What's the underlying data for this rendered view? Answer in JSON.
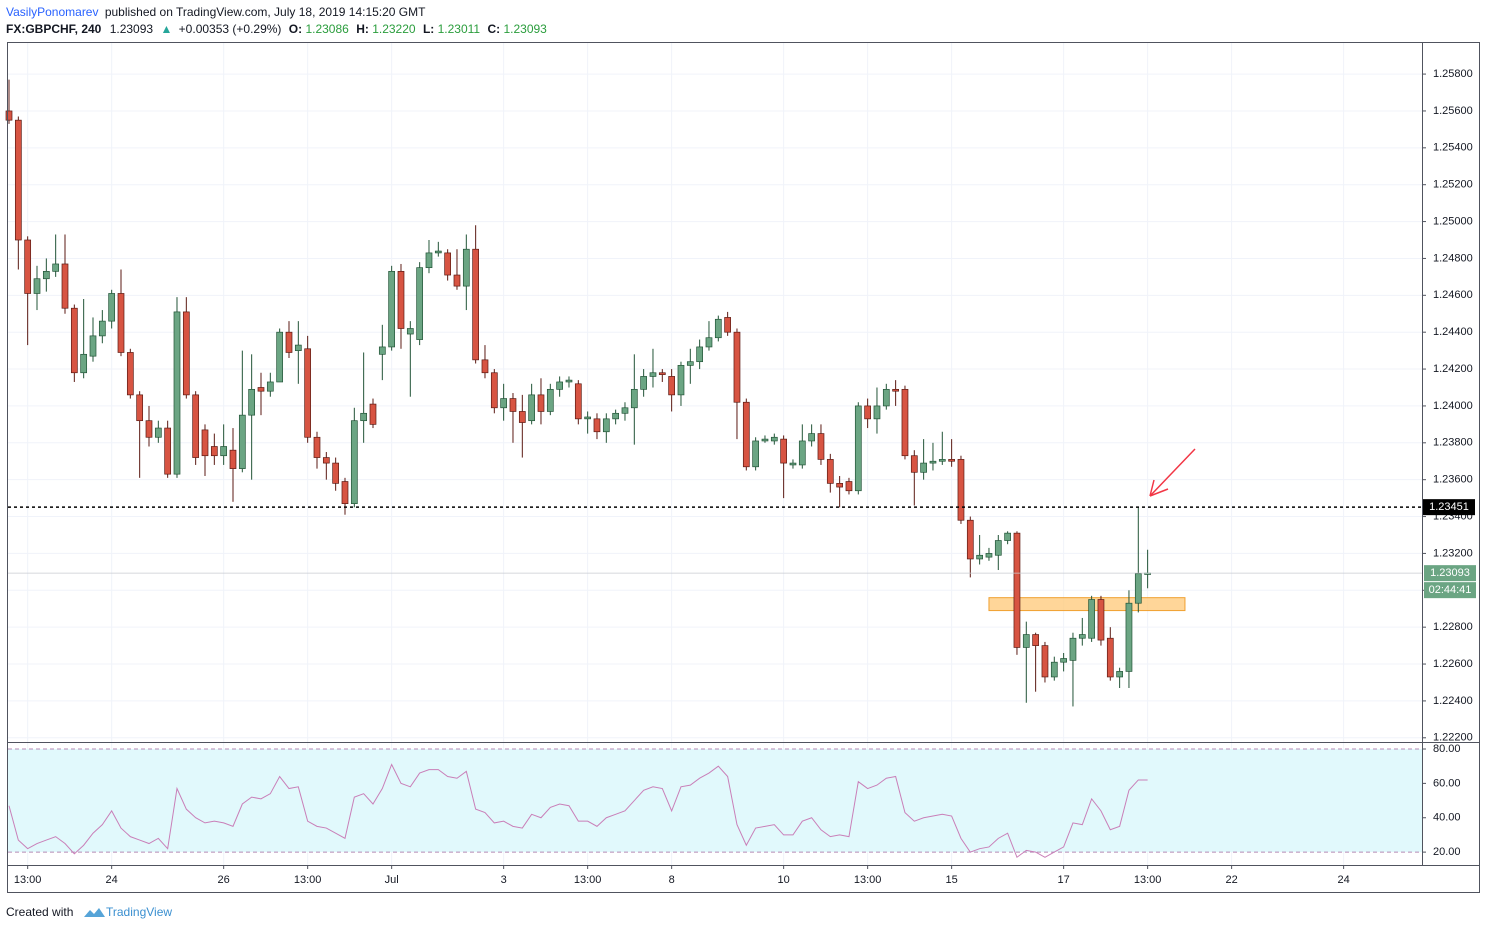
{
  "header": {
    "author": "VasilyPonomarev",
    "published": "published on TradingView.com, July 18, 2019 14:15:20 GMT",
    "symbol": "FX:GBPCHF, 240",
    "last": "1.23093",
    "change": "+0.00353 (+0.29%)",
    "ohlc": [
      {
        "label": "O:",
        "value": "1.23086"
      },
      {
        "label": "H:",
        "value": "1.23220"
      },
      {
        "label": "L:",
        "value": "1.23011"
      },
      {
        "label": "C:",
        "value": "1.23093"
      }
    ]
  },
  "footer": {
    "created": "Created with",
    "brand": "TradingView"
  },
  "chart_data": [
    {
      "type": "candlestick",
      "categories": [
        null,
        null,
        "13:00",
        null,
        null,
        null,
        null,
        null,
        null,
        null,
        null,
        "24",
        null,
        null,
        null,
        null,
        null,
        null,
        null,
        null,
        null,
        null,
        null,
        "26",
        null,
        null,
        null,
        null,
        null,
        null,
        null,
        null,
        "13:00",
        null,
        null,
        null,
        null,
        null,
        null,
        null,
        null,
        "Jul",
        null,
        null,
        null,
        null,
        null,
        null,
        null,
        null,
        null,
        null,
        null,
        "3",
        null,
        null,
        null,
        null,
        null,
        null,
        null,
        null,
        "13:00",
        null,
        null,
        null,
        null,
        null,
        null,
        null,
        null,
        "8",
        null,
        null,
        null,
        null,
        null,
        null,
        null,
        null,
        null,
        null,
        null,
        "10",
        null,
        null,
        null,
        null,
        null,
        null,
        null,
        null,
        "13:00",
        null,
        null,
        null,
        null,
        null,
        null,
        null,
        null,
        "15",
        null,
        null,
        null,
        null,
        null,
        null,
        null,
        null,
        null,
        null,
        null,
        "17",
        null,
        null,
        null,
        null,
        null,
        null,
        null,
        null,
        "13:00",
        null,
        null,
        null,
        null,
        null,
        null,
        null,
        null,
        "22",
        null,
        null,
        null,
        null,
        null,
        null,
        null,
        null,
        null,
        null,
        null,
        "24"
      ],
      "open": [
        1.256,
        1.2555,
        1.249,
        1.2461,
        1.2469,
        1.2473,
        1.2477,
        1.2453,
        1.2418,
        1.2427,
        1.2438,
        1.2446,
        1.2461,
        1.2429,
        1.2406,
        1.2392,
        1.2383,
        1.2388,
        1.2363,
        1.2451,
        1.2406,
        1.2387,
        1.2378,
        1.2373,
        1.2376,
        1.2366,
        1.2395,
        1.241,
        1.2408,
        1.2413,
        1.244,
        1.243,
        1.2431,
        1.2383,
        1.2372,
        1.2369,
        1.2359,
        1.2347,
        1.2392,
        1.2401,
        1.2428,
        1.2432,
        1.2473,
        1.2439,
        1.2436,
        1.2475,
        1.2483,
        1.2483,
        1.2471,
        1.2465,
        1.2485,
        1.2425,
        1.2418,
        1.2399,
        1.2404,
        1.2397,
        1.2392,
        1.2406,
        1.2397,
        1.2409,
        1.2413,
        1.2412,
        1.2393,
        1.2393,
        1.2386,
        1.2393,
        1.2396,
        1.2399,
        1.2409,
        1.2416,
        1.2418,
        1.2416,
        1.2406,
        1.2422,
        1.2424,
        1.2432,
        1.2437,
        1.2448,
        1.244,
        1.2402,
        1.2367,
        1.2381,
        1.2381,
        1.2382,
        1.2368,
        1.2368,
        1.2381,
        1.2385,
        1.2371,
        1.2358,
        1.2359,
        1.2354,
        1.24,
        1.2393,
        1.24,
        1.2409,
        1.2409,
        1.2373,
        1.2364,
        1.2369,
        1.237,
        1.2371,
        1.2371,
        1.2338,
        1.2317,
        1.2318,
        1.2319,
        1.2327,
        1.2331,
        1.2269,
        1.2276,
        1.227,
        1.2253,
        1.2261,
        1.2262,
        1.2274,
        1.2274,
        1.2295,
        1.2274,
        1.2253,
        1.2256,
        1.2293,
        1.23086,
        null,
        null,
        null,
        null,
        null,
        null,
        null,
        null,
        null,
        null,
        null,
        null,
        null,
        null,
        null,
        null,
        null,
        null,
        null,
        null,
        null
      ],
      "high": [
        1.2577,
        1.2557,
        1.2492,
        1.2476,
        1.248,
        1.2493,
        1.2493,
        1.2455,
        1.2458,
        1.2448,
        1.2452,
        1.2463,
        1.2474,
        1.2431,
        1.2408,
        1.24,
        1.2392,
        1.2392,
        1.2459,
        1.2459,
        1.2408,
        1.239,
        1.2385,
        1.239,
        1.2388,
        1.243,
        1.2428,
        1.2418,
        1.2418,
        1.2442,
        1.2446,
        1.2446,
        1.2438,
        1.2386,
        1.2375,
        1.2372,
        1.2361,
        1.2399,
        1.2429,
        1.2404,
        1.2444,
        1.2476,
        1.2477,
        1.2446,
        1.2478,
        1.249,
        1.2489,
        1.2485,
        1.2485,
        1.2493,
        1.2498,
        1.2433,
        1.242,
        1.2412,
        1.2407,
        1.2406,
        1.2412,
        1.2415,
        1.2412,
        1.2416,
        1.2416,
        1.2414,
        1.2397,
        1.2396,
        1.2396,
        1.2398,
        1.2402,
        1.2428,
        1.242,
        1.2431,
        1.242,
        1.242,
        1.2424,
        1.2431,
        1.2436,
        1.2446,
        1.2449,
        1.2451,
        1.2442,
        1.2404,
        1.2383,
        1.2384,
        1.2385,
        1.2384,
        1.2371,
        1.239,
        1.239,
        1.239,
        1.2374,
        1.2362,
        1.2361,
        1.2402,
        1.2404,
        1.241,
        1.2412,
        1.2414,
        1.2411,
        1.2376,
        1.2382,
        1.238,
        1.2386,
        1.2382,
        1.2373,
        1.234,
        1.233,
        1.2323,
        1.233,
        1.2332,
        1.2332,
        1.2283,
        1.2277,
        1.2272,
        1.2264,
        1.2266,
        1.2277,
        1.2285,
        1.2297,
        1.2297,
        1.228,
        1.2258,
        1.23,
        1.23451,
        1.2322,
        null,
        null,
        null,
        null,
        null,
        null,
        null,
        null,
        null,
        null,
        null,
        null,
        null,
        null,
        null,
        null,
        null,
        null,
        null,
        null,
        null
      ],
      "low": [
        1.2553,
        1.2474,
        1.2433,
        1.2452,
        1.2462,
        1.247,
        1.245,
        1.2413,
        1.2415,
        1.2424,
        1.2434,
        1.2442,
        1.2427,
        1.2404,
        1.2361,
        1.2378,
        1.238,
        1.2361,
        1.2361,
        1.2404,
        1.2368,
        1.2362,
        1.2368,
        1.2368,
        1.2348,
        1.2364,
        1.236,
        1.2395,
        1.2405,
        1.2414,
        1.2426,
        1.2412,
        1.238,
        1.2366,
        1.236,
        1.2354,
        1.2341,
        1.2345,
        1.238,
        1.2388,
        1.2414,
        1.243,
        1.2431,
        1.2405,
        1.2433,
        1.2472,
        1.2481,
        1.2468,
        1.2463,
        1.2452,
        1.2423,
        1.2415,
        1.2396,
        1.2392,
        1.238,
        1.2372,
        1.239,
        1.239,
        1.2395,
        1.2405,
        1.241,
        1.239,
        1.2385,
        1.2382,
        1.238,
        1.239,
        1.2392,
        1.2379,
        1.2405,
        1.241,
        1.2413,
        1.2397,
        1.24,
        1.2412,
        1.242,
        1.243,
        1.2435,
        1.2438,
        1.2382,
        1.2365,
        1.2365,
        1.238,
        1.2379,
        1.235,
        1.2366,
        1.2366,
        1.2378,
        1.2368,
        1.2353,
        1.2345,
        1.2352,
        1.2352,
        1.2388,
        1.2385,
        1.2398,
        1.24,
        1.2371,
        1.2346,
        1.236,
        1.2365,
        1.2368,
        1.2367,
        1.2336,
        1.2307,
        1.2314,
        1.2316,
        1.2311,
        1.2325,
        1.2265,
        1.2239,
        1.2245,
        1.225,
        1.2251,
        1.2256,
        1.2237,
        1.227,
        1.2272,
        1.227,
        1.2251,
        1.2247,
        1.2247,
        1.2288,
        1.23011,
        null,
        null,
        null,
        null,
        null,
        null,
        null,
        null,
        null,
        null,
        null,
        null,
        null,
        null,
        null,
        null,
        null,
        null,
        null,
        null,
        null
      ],
      "close": [
        1.2555,
        1.249,
        1.2461,
        1.2469,
        1.2473,
        1.2477,
        1.2453,
        1.2418,
        1.2428,
        1.2438,
        1.2446,
        1.2461,
        1.2429,
        1.2406,
        1.2392,
        1.2383,
        1.2388,
        1.2363,
        1.2451,
        1.2406,
        1.2372,
        1.2373,
        1.2373,
        1.2378,
        1.2366,
        1.2395,
        1.2409,
        1.2408,
        1.2413,
        1.244,
        1.2429,
        1.2433,
        1.2383,
        1.2372,
        1.2369,
        1.2358,
        1.2347,
        1.2392,
        1.2396,
        1.239,
        1.2432,
        1.2473,
        1.2442,
        1.2442,
        1.2475,
        1.2483,
        1.2484,
        1.2471,
        1.2465,
        1.2485,
        1.2425,
        1.2418,
        1.2399,
        1.2404,
        1.2397,
        1.2391,
        1.2406,
        1.2397,
        1.2409,
        1.2413,
        1.2414,
        1.2393,
        1.2394,
        1.2386,
        1.2393,
        1.2396,
        1.2399,
        1.2409,
        1.2416,
        1.2418,
        1.2417,
        1.2406,
        1.2422,
        1.2424,
        1.2432,
        1.2437,
        1.2447,
        1.244,
        1.2402,
        1.2367,
        1.2381,
        1.2382,
        1.2383,
        1.2369,
        1.2369,
        1.2381,
        1.2385,
        1.2371,
        1.2358,
        1.2356,
        1.2354,
        1.24,
        1.2393,
        1.24,
        1.2409,
        1.2408,
        1.2373,
        1.2364,
        1.2369,
        1.237,
        1.2371,
        1.237,
        1.2338,
        1.2317,
        1.2319,
        1.232,
        1.2327,
        1.2331,
        1.2269,
        1.2276,
        1.227,
        1.2253,
        1.2261,
        1.2263,
        1.2274,
        1.2276,
        1.2295,
        1.2273,
        1.2253,
        1.2256,
        1.2293,
        1.2309,
        1.23093,
        null,
        null,
        null,
        null,
        null,
        null,
        null,
        null,
        null,
        null,
        null,
        null,
        null,
        null,
        null,
        null,
        null,
        null,
        null,
        null,
        null
      ],
      "up_color": "#6ba583",
      "down_color": "#d75442",
      "up_border": "#225437",
      "down_border": "#5b1a13",
      "ylim": [
        1.22188,
        1.25974
      ],
      "yticks": [
        {
          "value": 1.222,
          "label": "1.22200"
        },
        {
          "value": 1.224,
          "label": "1.22400"
        },
        {
          "value": 1.226,
          "label": "1.22600"
        },
        {
          "value": 1.228,
          "label": "1.22800"
        },
        {
          "value": 1.23,
          "label": "1.23000"
        },
        {
          "value": 1.232,
          "label": "1.23200"
        },
        {
          "value": 1.234,
          "label": "1.23400"
        },
        {
          "value": 1.236,
          "label": "1.23600"
        },
        {
          "value": 1.238,
          "label": "1.23800"
        },
        {
          "value": 1.24,
          "label": "1.24000"
        },
        {
          "value": 1.242,
          "label": "1.24200"
        },
        {
          "value": 1.244,
          "label": "1.24400"
        },
        {
          "value": 1.246,
          "label": "1.24600"
        },
        {
          "value": 1.248,
          "label": "1.24800"
        },
        {
          "value": 1.25,
          "label": "1.25000"
        },
        {
          "value": 1.252,
          "label": "1.25200"
        },
        {
          "value": 1.254,
          "label": "1.25400"
        },
        {
          "value": 1.256,
          "label": "1.25600"
        },
        {
          "value": 1.258,
          "label": "1.25800"
        }
      ],
      "grid": true,
      "hline": 1.23451,
      "countdown": "02:44:41",
      "zone": {
        "from": 105,
        "to": 126,
        "low": 1.2289,
        "high": 1.2296,
        "color": "#ffcc80"
      }
    },
    {
      "type": "line",
      "values": [
        47,
        27,
        22,
        25,
        27,
        29,
        25,
        19,
        24,
        31,
        36,
        44,
        34,
        29,
        27,
        25,
        28,
        22,
        57,
        45,
        40,
        37,
        38,
        37,
        35,
        48,
        52,
        51,
        54,
        64,
        57,
        58,
        38,
        35,
        34,
        31,
        28,
        52,
        54,
        48,
        57,
        71,
        60,
        58,
        66,
        68,
        68,
        64,
        63,
        67,
        45,
        43,
        37,
        38,
        35,
        34,
        42,
        40,
        46,
        48,
        47,
        38,
        38,
        35,
        40,
        42,
        44,
        50,
        56,
        58,
        57,
        44,
        58,
        59,
        63,
        66,
        70,
        64,
        36,
        24,
        34,
        35,
        36,
        30,
        30,
        38,
        40,
        33,
        29,
        30,
        29,
        61,
        57,
        59,
        63,
        64,
        43,
        38,
        40,
        41,
        42,
        41,
        28,
        20,
        22,
        23,
        28,
        31,
        17,
        21,
        20,
        17,
        20,
        23,
        37,
        36,
        51,
        44,
        33,
        35,
        56,
        62,
        62,
        null,
        null,
        null,
        null,
        null,
        null,
        null,
        null,
        null,
        null,
        null,
        null,
        null,
        null,
        null,
        null,
        null,
        null,
        null,
        null,
        null
      ],
      "color": "#c97fb8",
      "ylim": [
        12.5,
        83.5
      ],
      "yticks": [
        {
          "value": 20,
          "label": "20.00"
        },
        {
          "value": 40,
          "label": "40.00"
        },
        {
          "value": 60,
          "label": "60.00"
        },
        {
          "value": 80,
          "label": "80.00"
        }
      ],
      "band": [
        20,
        80
      ],
      "band_color": "#e1f9fc"
    }
  ]
}
